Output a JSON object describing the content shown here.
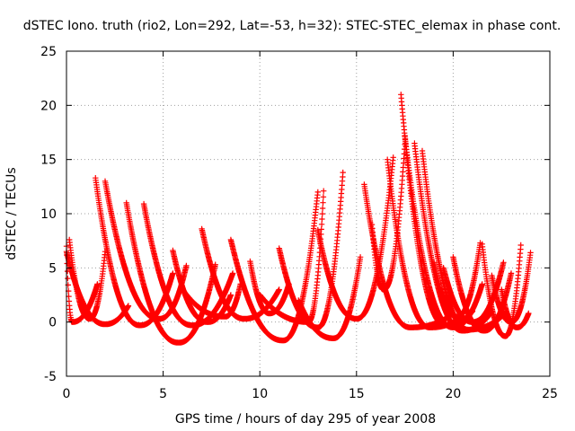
{
  "chart_data": {
    "type": "scatter",
    "title": "dSTEC Iono. truth (rio2, Lon=292, Lat=-53, h=32): STEC-STEC_elemax in phase cont.",
    "xlabel": "GPS time / hours of day 295 of year 2008",
    "ylabel": "dSTEC  / TECUs",
    "xlim": [
      0,
      25
    ],
    "ylim": [
      -5,
      25
    ],
    "xticks": [
      0,
      5,
      10,
      15,
      20,
      25
    ],
    "yticks": [
      -5,
      0,
      5,
      10,
      15,
      20,
      25
    ],
    "grid": true,
    "marker": "+",
    "series_color": "#ff0000",
    "arcs": [
      {
        "t_start": 0.0,
        "t_min": 0.3,
        "t_end": 1.6,
        "v_start": 7.0,
        "v_min": 0.0,
        "v_end": 3.5
      },
      {
        "t_start": 0.15,
        "t_min": 1.2,
        "t_end": 2.0,
        "v_start": 7.6,
        "v_min": 0.3,
        "v_end": 6.5
      },
      {
        "t_start": 0.0,
        "t_min": 2.0,
        "t_end": 3.2,
        "v_start": 6.5,
        "v_min": -0.2,
        "v_end": 1.5
      },
      {
        "t_start": 1.5,
        "t_min": 3.8,
        "t_end": 5.5,
        "v_start": 13.3,
        "v_min": -0.3,
        "v_end": 4.5
      },
      {
        "t_start": 2.0,
        "t_min": 4.8,
        "t_end": 6.2,
        "v_start": 13.0,
        "v_min": 0.3,
        "v_end": 5.2
      },
      {
        "t_start": 3.1,
        "t_min": 5.8,
        "t_end": 7.7,
        "v_start": 11.0,
        "v_min": -1.9,
        "v_end": 5.3
      },
      {
        "t_start": 4.0,
        "t_min": 6.5,
        "t_end": 8.6,
        "v_start": 10.9,
        "v_min": -0.3,
        "v_end": 4.5
      },
      {
        "t_start": 5.5,
        "t_min": 7.3,
        "t_end": 8.5,
        "v_start": 6.6,
        "v_min": 0.0,
        "v_end": 2.5
      },
      {
        "t_start": 6.0,
        "t_min": 8.2,
        "t_end": 9.0,
        "v_start": 3.0,
        "v_min": 0.5,
        "v_end": 3.5
      },
      {
        "t_start": 7.0,
        "t_min": 9.2,
        "t_end": 11.0,
        "v_start": 8.6,
        "v_min": 0.3,
        "v_end": 3.0
      },
      {
        "t_start": 8.5,
        "t_min": 11.2,
        "t_end": 13.0,
        "v_start": 7.6,
        "v_min": -1.7,
        "v_end": 12.0
      },
      {
        "t_start": 9.5,
        "t_min": 10.5,
        "t_end": 11.5,
        "v_start": 5.6,
        "v_min": 0.8,
        "v_end": 3.5
      },
      {
        "t_start": 10.0,
        "t_min": 12.5,
        "t_end": 13.3,
        "v_start": 2.5,
        "v_min": 0.0,
        "v_end": 12.1
      },
      {
        "t_start": 11.0,
        "t_min": 13.0,
        "t_end": 14.3,
        "v_start": 6.8,
        "v_min": -0.5,
        "v_end": 13.8
      },
      {
        "t_start": 12.0,
        "t_min": 13.8,
        "t_end": 15.2,
        "v_start": 2.0,
        "v_min": -1.5,
        "v_end": 6.0
      },
      {
        "t_start": 13.0,
        "t_min": 15.0,
        "t_end": 16.9,
        "v_start": 8.5,
        "v_min": 0.3,
        "v_end": 15.2
      },
      {
        "t_start": 15.4,
        "t_min": 17.8,
        "t_end": 19.8,
        "v_start": 12.7,
        "v_min": -0.5,
        "v_end": 0.5
      },
      {
        "t_start": 15.8,
        "t_min": 16.4,
        "t_end": 17.5,
        "v_start": 9.0,
        "v_min": 3.0,
        "v_end": 16.4
      },
      {
        "t_start": 16.6,
        "t_min": 18.8,
        "t_end": 20.5,
        "v_start": 15.0,
        "v_min": -0.5,
        "v_end": 0.5
      },
      {
        "t_start": 17.3,
        "t_min": 19.6,
        "t_end": 21.0,
        "v_start": 21.0,
        "v_min": -0.3,
        "v_end": 1.0
      },
      {
        "t_start": 17.5,
        "t_min": 20.0,
        "t_end": 21.5,
        "v_start": 17.2,
        "v_min": -0.5,
        "v_end": 3.5
      },
      {
        "t_start": 18.0,
        "t_min": 20.5,
        "t_end": 22.0,
        "v_start": 16.5,
        "v_min": -0.8,
        "v_end": 1.0
      },
      {
        "t_start": 18.4,
        "t_min": 20.8,
        "t_end": 22.5,
        "v_start": 15.8,
        "v_min": -0.7,
        "v_end": 0.5
      },
      {
        "t_start": 19.0,
        "t_min": 20.2,
        "t_end": 21.4,
        "v_start": 5.5,
        "v_min": 0.5,
        "v_end": 7.3
      },
      {
        "t_start": 19.5,
        "t_min": 21.0,
        "t_end": 22.6,
        "v_start": 5.0,
        "v_min": 0.0,
        "v_end": 5.5
      },
      {
        "t_start": 20.0,
        "t_min": 21.6,
        "t_end": 23.0,
        "v_start": 6.0,
        "v_min": -0.8,
        "v_end": 4.5
      },
      {
        "t_start": 21.5,
        "t_min": 22.7,
        "t_end": 23.5,
        "v_start": 7.2,
        "v_min": -1.3,
        "v_end": 7.1
      },
      {
        "t_start": 22.0,
        "t_min": 23.0,
        "t_end": 24.0,
        "v_start": 4.3,
        "v_min": 0.0,
        "v_end": 6.4
      },
      {
        "t_start": 22.5,
        "t_min": 23.3,
        "t_end": 23.9,
        "v_start": 3.0,
        "v_min": -0.5,
        "v_end": 0.8
      }
    ]
  }
}
